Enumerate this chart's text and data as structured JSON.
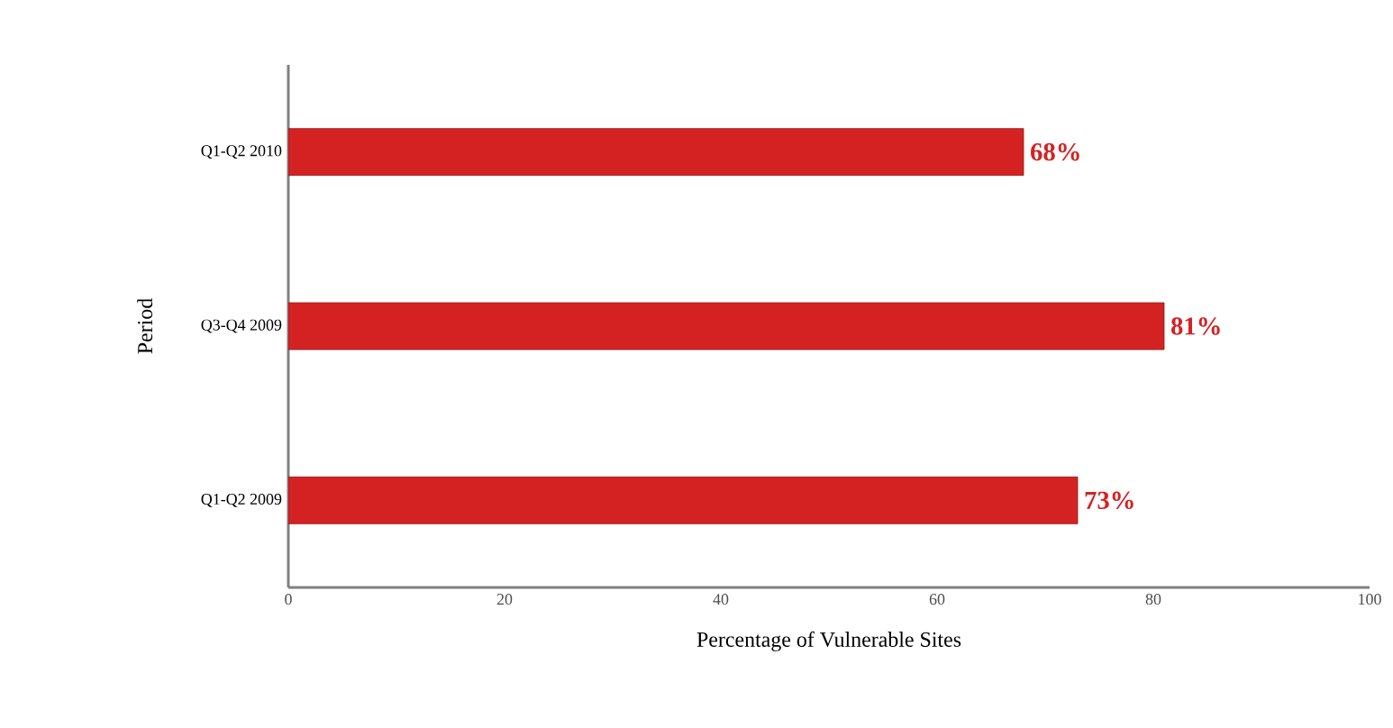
{
  "chart_data": {
    "type": "bar",
    "orientation": "horizontal",
    "xlabel": "Percentage of Vulnerable Sites",
    "ylabel": "Period",
    "categories": [
      "Q1-Q2 2010",
      "Q3-Q4 2009",
      "Q1-Q2 2009"
    ],
    "values": [
      68,
      81,
      73
    ],
    "value_labels": [
      "68%",
      "81%",
      "73%"
    ],
    "color": "#d42222",
    "xlim": [
      0,
      100
    ],
    "xticks": [
      0,
      20,
      40,
      60,
      80,
      100
    ]
  }
}
